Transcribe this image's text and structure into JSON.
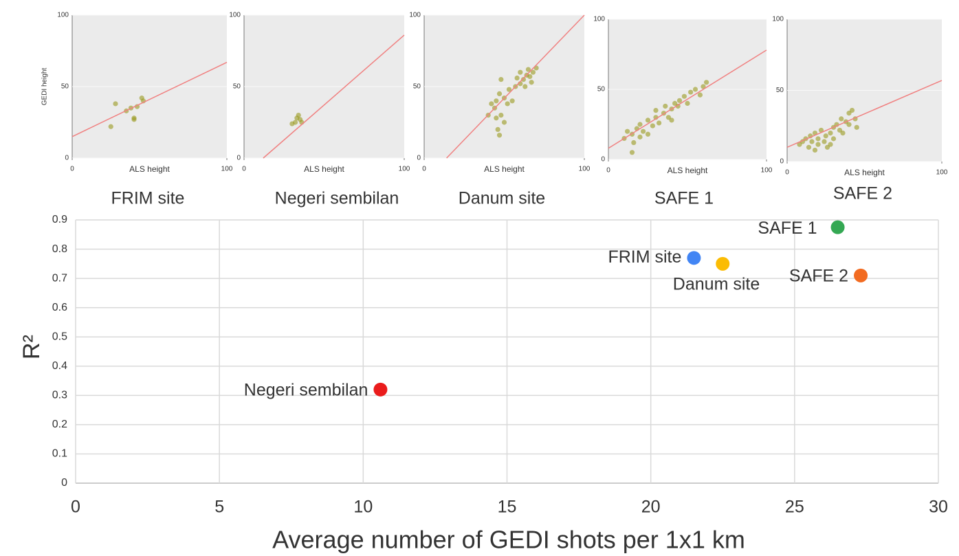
{
  "chart_data": [
    {
      "type": "scatter",
      "title": "FRIM site",
      "xlabel": "ALS height",
      "ylabel": "GEDI height",
      "color": "#9a9a1e",
      "x": [
        25,
        28,
        35,
        38,
        40,
        42,
        45,
        46,
        40
      ],
      "values": [
        22,
        38,
        33,
        35,
        28,
        36,
        42,
        40,
        27
      ],
      "trend_x": [
        0,
        100
      ],
      "trend_y": [
        15,
        67
      ],
      "trend_color": "#f08080",
      "xlim": [
        0,
        100
      ],
      "ylim": [
        0,
        100
      ],
      "xticks": [
        0,
        100
      ],
      "yticks": [
        0,
        50,
        100
      ]
    },
    {
      "type": "scatter",
      "title": "Negeri  sembilan",
      "xlabel": "ALS height",
      "color": "#9a9a1e",
      "x": [
        30,
        32,
        34,
        35,
        36,
        33
      ],
      "values": [
        24,
        25,
        30,
        27,
        25,
        28
      ],
      "trend_x": [
        12,
        100
      ],
      "trend_y": [
        0,
        86
      ],
      "trend_color": "#f08080",
      "xlim": [
        0,
        100
      ],
      "ylim": [
        0,
        100
      ],
      "xticks": [
        0,
        100
      ],
      "yticks": [
        0,
        50,
        100
      ]
    },
    {
      "type": "scatter",
      "title": "Danum site",
      "xlabel": "ALS height",
      "color": "#9a9a1e",
      "x": [
        40,
        42,
        44,
        45,
        46,
        47,
        48,
        48,
        50,
        50,
        52,
        53,
        55,
        57,
        58,
        60,
        60,
        62,
        63,
        64,
        65,
        66,
        67,
        68,
        70,
        45,
        47
      ],
      "values": [
        30,
        38,
        35,
        40,
        20,
        45,
        55,
        30,
        25,
        42,
        38,
        48,
        40,
        50,
        56,
        52,
        60,
        55,
        50,
        58,
        62,
        57,
        53,
        60,
        63,
        28,
        16
      ],
      "trend_x": [
        14,
        100
      ],
      "trend_y": [
        0,
        100
      ],
      "trend_color": "#f08080",
      "xlim": [
        0,
        100
      ],
      "ylim": [
        0,
        100
      ],
      "xticks": [
        0,
        100
      ],
      "yticks": [
        0,
        50,
        100
      ]
    },
    {
      "type": "scatter",
      "title": "SAFE 1",
      "xlabel": "ALS height",
      "color": "#9a9a1e",
      "x": [
        10,
        12,
        15,
        16,
        18,
        20,
        20,
        22,
        25,
        25,
        28,
        30,
        32,
        35,
        36,
        38,
        40,
        42,
        44,
        45,
        48,
        50,
        52,
        55,
        58,
        60,
        62,
        15,
        30,
        40
      ],
      "values": [
        15,
        20,
        18,
        12,
        22,
        16,
        25,
        20,
        18,
        28,
        24,
        30,
        26,
        33,
        38,
        30,
        36,
        40,
        38,
        42,
        45,
        40,
        48,
        50,
        46,
        52,
        55,
        5,
        35,
        28
      ],
      "trend_x": [
        0,
        100
      ],
      "trend_y": [
        8,
        78
      ],
      "trend_color": "#f08080",
      "xlim": [
        0,
        100
      ],
      "ylim": [
        0,
        100
      ],
      "xticks": [
        0,
        100
      ],
      "yticks": [
        0,
        50,
        100
      ]
    },
    {
      "type": "scatter",
      "title": "SAFE 2",
      "xlabel": "ALS height",
      "color": "#9a9a1e",
      "x": [
        8,
        10,
        12,
        14,
        15,
        16,
        18,
        20,
        20,
        22,
        24,
        25,
        26,
        28,
        30,
        30,
        32,
        34,
        35,
        36,
        38,
        40,
        40,
        42,
        44,
        45,
        18,
        28
      ],
      "values": [
        12,
        14,
        16,
        10,
        18,
        14,
        20,
        12,
        16,
        22,
        14,
        18,
        10,
        20,
        24,
        16,
        26,
        22,
        30,
        20,
        28,
        34,
        26,
        36,
        30,
        24,
        8,
        12
      ],
      "trend_x": [
        0,
        100
      ],
      "trend_y": [
        10,
        57
      ],
      "trend_color": "#f08080",
      "xlim": [
        0,
        100
      ],
      "ylim": [
        0,
        100
      ],
      "xticks": [
        0,
        100
      ],
      "yticks": [
        0,
        50,
        100
      ]
    },
    {
      "type": "scatter",
      "xlabel": "Average number of GEDI shots per 1x1 km",
      "ylabel": "R²",
      "series": [
        {
          "name": "FRIM site",
          "color": "#4285f4",
          "x": [
            21.5
          ],
          "values": [
            0.77
          ]
        },
        {
          "name": "Danum site",
          "color": "#fbbc04",
          "x": [
            22.5
          ],
          "values": [
            0.75
          ]
        },
        {
          "name": "SAFE  1",
          "color": "#34a853",
          "x": [
            26.5
          ],
          "values": [
            0.875
          ]
        },
        {
          "name": "SAFE 2",
          "color": "#f26b21",
          "x": [
            27.3
          ],
          "values": [
            0.71
          ]
        },
        {
          "name": "Negeri  sembilan",
          "color": "#ea1c1c",
          "x": [
            10.6
          ],
          "values": [
            0.32
          ]
        }
      ],
      "xlim": [
        0,
        30
      ],
      "ylim": [
        0,
        0.9
      ],
      "xticks": [
        0,
        5,
        10,
        15,
        20,
        25,
        30
      ],
      "yticks": [
        0,
        0.1,
        0.2,
        0.3,
        0.4,
        0.5,
        0.6,
        0.7,
        0.8,
        0.9
      ],
      "grid": true
    }
  ]
}
